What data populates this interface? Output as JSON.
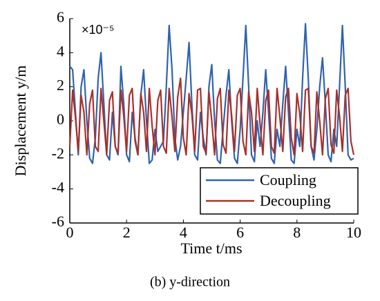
{
  "chart_data": {
    "type": "line",
    "xlabel": "Time t/ms",
    "ylabel": "Displacement y/m",
    "annotation": "×10⁻⁵",
    "caption": "(b) y-direction",
    "x": [
      0,
      0.1,
      0.2,
      0.3,
      0.4,
      0.5,
      0.6,
      0.7,
      0.8,
      0.9,
      1,
      1.1,
      1.2,
      1.3,
      1.4,
      1.5,
      1.6,
      1.7,
      1.8,
      1.9,
      2,
      2.1,
      2.2,
      2.3,
      2.4,
      2.5,
      2.6,
      2.7,
      2.8,
      2.9,
      3,
      3.1,
      3.2,
      3.3,
      3.4,
      3.5,
      3.6,
      3.7,
      3.8,
      3.9,
      4,
      4.1,
      4.2,
      4.3,
      4.4,
      4.5,
      4.6,
      4.7,
      4.8,
      4.9,
      5,
      5.1,
      5.2,
      5.3,
      5.4,
      5.5,
      5.6,
      5.7,
      5.8,
      5.9,
      6,
      6.1,
      6.2,
      6.3,
      6.4,
      6.5,
      6.6,
      6.7,
      6.8,
      6.9,
      7,
      7.1,
      7.2,
      7.3,
      7.4,
      7.5,
      7.6,
      7.7,
      7.8,
      7.9,
      8,
      8.1,
      8.2,
      8.3,
      8.4,
      8.5,
      8.6,
      8.7,
      8.8,
      8.9,
      9,
      9.1,
      9.2,
      9.3,
      9.4,
      9.5,
      9.6,
      9.7,
      9.8,
      9.9,
      10
    ],
    "series": [
      {
        "name": "Coupling",
        "color": "#2f62b0",
        "values": [
          3.2,
          3.0,
          0.5,
          -2.0,
          2.0,
          3.0,
          0.0,
          -2.2,
          -2.5,
          -1.0,
          2.5,
          4.0,
          1.0,
          -2.0,
          -2.3,
          0.5,
          -1.5,
          -2.0,
          3.2,
          1.0,
          -2.0,
          -2.4,
          0.5,
          -1.0,
          -2.0,
          1.5,
          3.0,
          0.0,
          -2.5,
          -2.3,
          -0.5,
          -1.8,
          -1.5,
          -1.2,
          2.0,
          5.6,
          3.0,
          -1.0,
          -2.3,
          -1.5,
          0.5,
          2.5,
          4.6,
          1.0,
          -2.0,
          -2.3,
          0.5,
          -1.0,
          -2.0,
          2.0,
          3.3,
          0.0,
          -2.3,
          -2.5,
          -0.5,
          1.5,
          3.0,
          0.0,
          -2.2,
          -2.5,
          -0.5,
          2.5,
          5.6,
          2.0,
          -2.0,
          -2.4,
          0.0,
          -1.5,
          0.5,
          3.0,
          0.5,
          -2.2,
          -2.5,
          -0.5,
          -1.5,
          1.0,
          3.2,
          0.5,
          -2.3,
          -2.5,
          -0.5,
          -1.5,
          2.5,
          5.7,
          2.5,
          -1.5,
          -2.3,
          -0.5,
          2.0,
          3.7,
          1.0,
          -2.0,
          -2.4,
          -0.5,
          -1.5,
          2.0,
          5.6,
          2.0,
          -2.0,
          -2.3,
          -2.2
        ]
      },
      {
        "name": "Decoupling",
        "color": "#a8302a",
        "values": [
          -1.5,
          1.8,
          0.2,
          -1.8,
          1.5,
          0.5,
          -2.0,
          1.0,
          1.8,
          -1.5,
          -1.8,
          1.9,
          0.0,
          -2.0,
          1.2,
          1.7,
          -1.5,
          -1.9,
          1.8,
          0.3,
          -1.8,
          1.5,
          1.9,
          -1.2,
          -2.0,
          1.6,
          0.5,
          -1.8,
          1.9,
          -0.3,
          -2.0,
          1.2,
          1.8,
          -1.5,
          -1.9,
          1.9,
          0.2,
          -1.8,
          1.4,
          2.5,
          -1.0,
          -2.0,
          1.6,
          0.4,
          -1.8,
          1.8,
          1.9,
          -1.5,
          -1.9,
          1.7,
          0.0,
          -2.0,
          1.3,
          1.9,
          -1.4,
          -1.9,
          1.8,
          0.3,
          -1.8,
          1.5,
          1.9,
          -1.2,
          -2.0,
          1.7,
          0.5,
          -1.8,
          1.9,
          -0.2,
          -2.0,
          1.2,
          1.8,
          -1.5,
          -1.9,
          1.9,
          0.2,
          -1.8,
          1.4,
          1.9,
          -1.0,
          -2.0,
          1.6,
          0.4,
          -1.8,
          1.8,
          1.9,
          -1.5,
          -1.9,
          1.7,
          0.0,
          -2.0,
          1.3,
          1.9,
          -1.4,
          -1.9,
          1.8,
          0.3,
          -1.8,
          1.5,
          1.9,
          -1.2,
          -2.0
        ]
      }
    ],
    "xlim": [
      0,
      10
    ],
    "ylim": [
      -6,
      6
    ],
    "xticks": [
      0,
      2,
      4,
      6,
      8,
      10
    ],
    "yticks": [
      -6,
      -4,
      -2,
      0,
      2,
      4,
      6
    ],
    "legend": "lower right"
  }
}
